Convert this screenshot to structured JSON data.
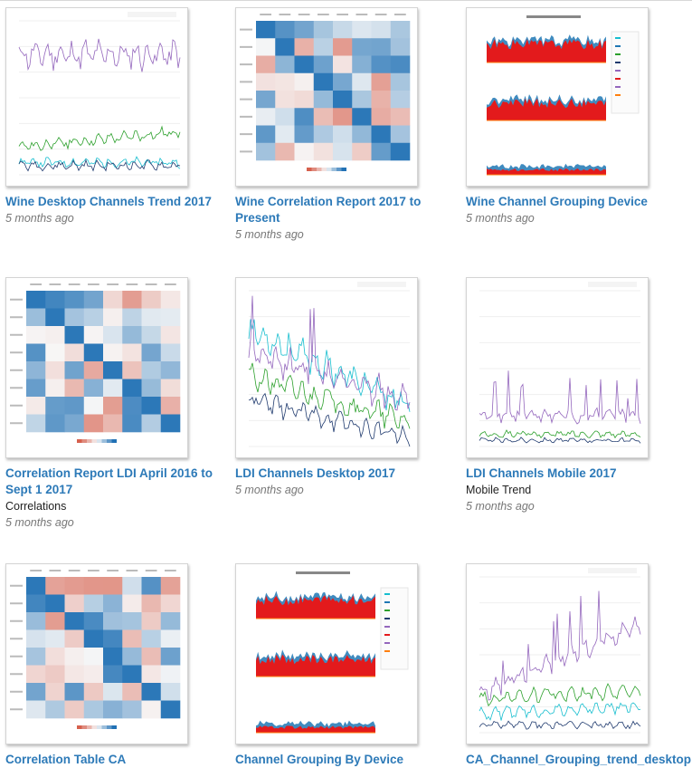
{
  "items": [
    {
      "id": "wine-desktop",
      "title": "Wine Desktop Channels Trend 2017",
      "description": "",
      "time": "5 months ago",
      "type": "line",
      "seed": 11
    },
    {
      "id": "wine-corr",
      "title": "Wine Correlation Report 2017 to Present",
      "description": "",
      "time": "5 months ago",
      "type": "heatmap",
      "seed": 23
    },
    {
      "id": "wine-device",
      "title": "Wine Channel Grouping Device",
      "description": "",
      "time": "5 months ago",
      "type": "device",
      "seed": 31
    },
    {
      "id": "ldi-corr",
      "title": "Correlation Report LDI April 2016 to Sept 1 2017",
      "description": "Correlations",
      "time": "5 months ago",
      "type": "heatmap",
      "seed": 47
    },
    {
      "id": "ldi-desktop",
      "title": "LDI Channels Desktop 2017",
      "description": "",
      "time": "5 months ago",
      "type": "line-decay",
      "seed": 53
    },
    {
      "id": "ldi-mobile",
      "title": "LDI Channels Mobile 2017",
      "description": "Mobile Trend",
      "time": "5 months ago",
      "type": "line-spike",
      "seed": 67
    },
    {
      "id": "ca-corr",
      "title": "Correlation Table CA",
      "description": "",
      "time": "",
      "type": "heatmap",
      "seed": 71
    },
    {
      "id": "ca-device",
      "title": "Channel Grouping By Device",
      "description": "",
      "time": "",
      "type": "device",
      "seed": 83
    },
    {
      "id": "ca-trend",
      "title": "CA_Channel_Grouping_trend_desktop",
      "description": "",
      "time": "",
      "type": "line-rise",
      "seed": 97
    }
  ],
  "colors": {
    "link": "#2d7ab8",
    "purple": "#9467bd",
    "green": "#2ca02c",
    "teal": "#17becf",
    "navy": "#1f3a6e",
    "red": "#e31a1c",
    "blue": "#1f77b4",
    "orange": "#ff7f0e"
  }
}
